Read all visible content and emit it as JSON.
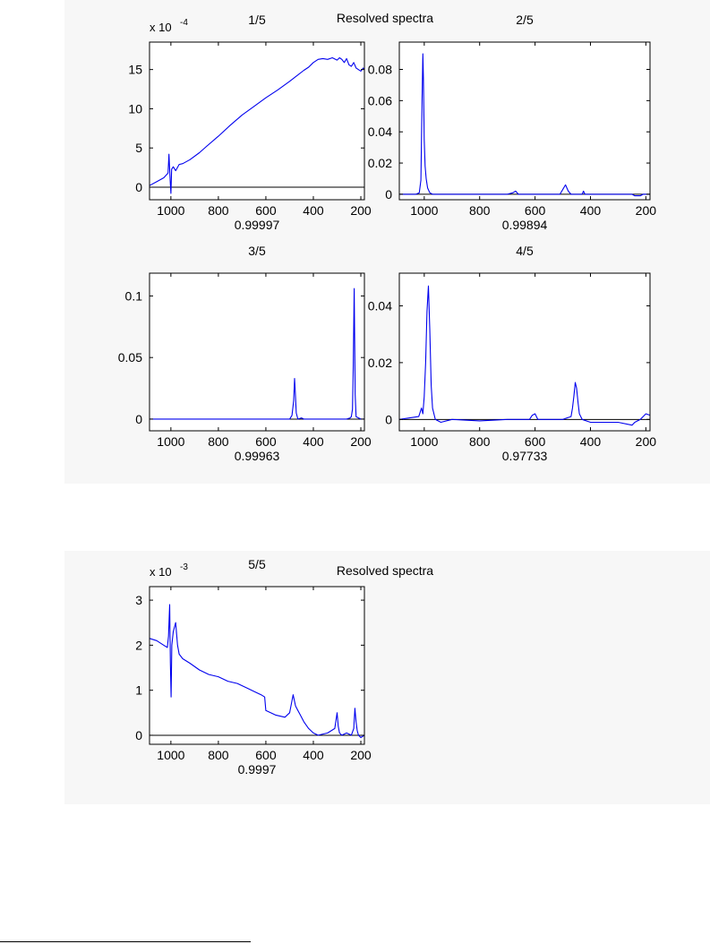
{
  "figures": [
    {
      "title": "Resolved spectra"
    },
    {
      "title": "Resolved spectra"
    }
  ],
  "colors": {
    "trace": "#0000ee",
    "axes": "#000000",
    "baseline": "#000000",
    "figure_bg": "#f7f7f7",
    "plot_bg": "#ffffff"
  },
  "chart_data": [
    {
      "type": "line",
      "title": "1/5",
      "xlabel": "0.99997",
      "exponent": "x 10",
      "exponent_power": "-4",
      "xlim": [
        1090,
        185
      ],
      "ylim": [
        -1.6,
        18.5
      ],
      "xticks": [
        1000,
        800,
        600,
        400,
        200
      ],
      "xtick_labels": [
        "1000",
        "800",
        "600",
        "400",
        "200"
      ],
      "yticks": [
        0,
        5,
        10,
        15
      ],
      "ytick_labels": [
        "0",
        "5",
        "10",
        "15"
      ],
      "baseline": 0,
      "series": [
        {
          "x": [
            1090,
            1060,
            1030,
            1012,
            1008,
            1003,
            1000,
            997,
            990,
            980,
            965,
            950,
            920,
            880,
            850,
            800,
            750,
            700,
            650,
            600,
            550,
            500,
            470,
            440,
            420,
            400,
            380,
            360,
            340,
            320,
            300,
            290,
            280,
            270,
            260,
            250,
            240,
            230,
            220,
            200,
            190,
            185
          ],
          "y": [
            0.2,
            0.7,
            1.2,
            1.8,
            4.2,
            0.8,
            -0.8,
            2.3,
            2.6,
            2.1,
            2.9,
            3.0,
            3.5,
            4.4,
            5.2,
            6.5,
            7.9,
            9.2,
            10.3,
            11.4,
            12.4,
            13.5,
            14.2,
            14.9,
            15.3,
            15.9,
            16.3,
            16.4,
            16.3,
            16.5,
            16.2,
            16.5,
            16.3,
            15.9,
            16.4,
            15.6,
            15.4,
            15.9,
            15.2,
            14.8,
            15.2,
            15.0
          ]
        }
      ]
    },
    {
      "type": "line",
      "title": "2/5",
      "xlabel": "0.99894",
      "xlim": [
        1090,
        185
      ],
      "ylim": [
        -0.0035,
        0.0975
      ],
      "xticks": [
        1000,
        800,
        600,
        400,
        200
      ],
      "xtick_labels": [
        "1000",
        "800",
        "600",
        "400",
        "200"
      ],
      "yticks": [
        0,
        0.02,
        0.04,
        0.06,
        0.08
      ],
      "ytick_labels": [
        "0",
        "0.02",
        "0.04",
        "0.06",
        "0.08"
      ],
      "baseline": 0,
      "series": [
        {
          "x": [
            1090,
            1030,
            1018,
            1012,
            1008,
            1005,
            1003,
            1000,
            997,
            993,
            988,
            980,
            970,
            700,
            680,
            670,
            660,
            640,
            510,
            500,
            490,
            480,
            470,
            430,
            425,
            420,
            410,
            400,
            250,
            240,
            220,
            210,
            200,
            185
          ],
          "y": [
            0.0,
            0.0,
            0.001,
            0.009,
            0.06,
            0.09,
            0.075,
            0.035,
            0.018,
            0.01,
            0.004,
            0.001,
            0.0,
            0.0,
            0.001,
            0.002,
            0.0,
            0.0,
            0.0,
            0.003,
            0.006,
            0.002,
            0.0,
            0.0,
            0.002,
            0.0,
            0.0,
            0.0,
            0.0,
            -0.001,
            -0.001,
            0.0,
            0.0,
            0.0
          ]
        }
      ]
    },
    {
      "type": "line",
      "title": "3/5",
      "xlabel": "0.99963",
      "xlim": [
        1090,
        185
      ],
      "ylim": [
        -0.0095,
        0.1185
      ],
      "xticks": [
        1000,
        800,
        600,
        400,
        200
      ],
      "xtick_labels": [
        "1000",
        "800",
        "600",
        "400",
        "200"
      ],
      "yticks": [
        0,
        0.05,
        0.1
      ],
      "ytick_labels": [
        "0",
        "0.05",
        "0.1"
      ],
      "baseline": 0,
      "series": [
        {
          "x": [
            1090,
            500,
            490,
            483,
            479,
            476,
            472,
            465,
            450,
            440,
            430,
            260,
            245,
            240,
            235,
            232,
            228,
            224,
            220,
            210,
            200,
            185
          ],
          "y": [
            0.0,
            0.0,
            0.003,
            0.015,
            0.033,
            0.022,
            0.005,
            0.0,
            0.001,
            0.0,
            0.0,
            0.0,
            0.001,
            0.002,
            0.008,
            0.04,
            0.106,
            0.02,
            0.002,
            0.001,
            0.0,
            0.0
          ]
        }
      ]
    },
    {
      "type": "line",
      "title": "4/5",
      "xlabel": "0.97733",
      "xlim": [
        1090,
        185
      ],
      "ylim": [
        -0.004,
        0.0515
      ],
      "xticks": [
        1000,
        800,
        600,
        400,
        200
      ],
      "xtick_labels": [
        "1000",
        "800",
        "600",
        "400",
        "200"
      ],
      "yticks": [
        0,
        0.02,
        0.04
      ],
      "ytick_labels": [
        "0",
        "0.02",
        "0.04"
      ],
      "baseline": 0,
      "series": [
        {
          "x": [
            1090,
            1020,
            1010,
            1005,
            1000,
            995,
            990,
            985,
            980,
            975,
            970,
            960,
            940,
            900,
            800,
            700,
            620,
            610,
            600,
            590,
            500,
            470,
            465,
            460,
            455,
            450,
            445,
            440,
            430,
            400,
            300,
            250,
            240,
            220,
            200,
            185
          ],
          "y": [
            0.0,
            0.001,
            0.004,
            0.002,
            0.008,
            0.02,
            0.038,
            0.047,
            0.032,
            0.012,
            0.004,
            0.0,
            -0.001,
            0.0,
            -0.0005,
            0.0,
            0.0,
            0.0015,
            0.002,
            0.0,
            0.0,
            0.001,
            0.004,
            0.008,
            0.013,
            0.011,
            0.006,
            0.002,
            0.0,
            -0.001,
            -0.001,
            -0.002,
            -0.001,
            0.0,
            0.002,
            0.0015
          ]
        }
      ]
    },
    {
      "type": "line",
      "title": "5/5",
      "xlabel": "0.9997",
      "exponent": "x 10",
      "exponent_power": "-3",
      "xlim": [
        1090,
        185
      ],
      "ylim": [
        -0.2,
        3.3
      ],
      "xticks": [
        1000,
        800,
        600,
        400,
        200
      ],
      "xtick_labels": [
        "1000",
        "800",
        "600",
        "400",
        "200"
      ],
      "yticks": [
        0,
        1,
        2,
        3
      ],
      "ytick_labels": [
        "0",
        "1",
        "2",
        "3"
      ],
      "baseline": 0,
      "series": [
        {
          "x": [
            1090,
            1060,
            1030,
            1015,
            1010,
            1005,
            1002,
            999,
            996,
            990,
            980,
            972,
            965,
            950,
            920,
            880,
            840,
            800,
            760,
            720,
            680,
            640,
            620,
            605,
            600,
            560,
            520,
            500,
            485,
            475,
            465,
            455,
            440,
            420,
            400,
            380,
            340,
            310,
            300,
            295,
            290,
            280,
            260,
            240,
            230,
            225,
            220,
            215,
            210,
            200,
            185
          ],
          "y": [
            2.15,
            2.1,
            2.0,
            1.95,
            2.2,
            2.9,
            1.6,
            0.85,
            2.0,
            2.3,
            2.5,
            2.0,
            1.8,
            1.7,
            1.6,
            1.45,
            1.35,
            1.3,
            1.2,
            1.15,
            1.05,
            0.95,
            0.9,
            0.85,
            0.55,
            0.45,
            0.4,
            0.5,
            0.9,
            0.65,
            0.55,
            0.45,
            0.3,
            0.15,
            0.05,
            0.0,
            0.05,
            0.15,
            0.5,
            0.2,
            0.05,
            0.0,
            0.05,
            0.0,
            0.15,
            0.6,
            0.3,
            0.1,
            0.0,
            -0.05,
            0.0
          ]
        }
      ]
    }
  ]
}
